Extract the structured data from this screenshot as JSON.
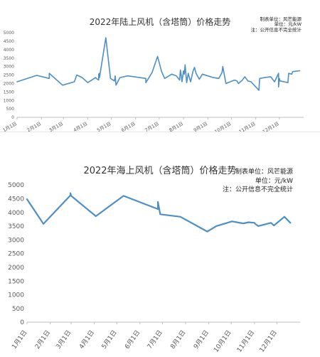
{
  "chart_data": [
    {
      "type": "line",
      "title": "2022年陆上风机（含塔筒）价格走势",
      "notes": [
        "制表单位：风芒能源",
        "单位：元/kW",
        "注：公开信息不完全统计"
      ],
      "categories": [
        "1月1日",
        "2月1日",
        "3月1日",
        "4月1日",
        "5月1日",
        "6月1日",
        "7月1日",
        "8月1日",
        "9月1日",
        "10月1日",
        "11月1日",
        "12月1日"
      ],
      "ylim": [
        0,
        5000
      ],
      "yticks": [
        0,
        500,
        1000,
        1500,
        2000,
        2500,
        3000,
        3500,
        4000,
        4500,
        5000
      ],
      "grid": false,
      "series_color": "#4e8fc6",
      "x": [
        "2022-01-01",
        "2022-01-26",
        "2022-02-11",
        "2022-02-11",
        "2022-02-28",
        "2022-03-15",
        "2022-03-18",
        "2022-03-25",
        "2022-04-01",
        "2022-04-11",
        "2022-04-12",
        "2022-04-15",
        "2022-04-15",
        "2022-04-16",
        "2022-04-16",
        "2022-04-24",
        "2022-04-30",
        "2022-05-05",
        "2022-05-06",
        "2022-05-07",
        "2022-05-12",
        "2022-05-22",
        "2022-06-14",
        "2022-06-14",
        "2022-06-22",
        "2022-06-29",
        "2022-07-04",
        "2022-07-08",
        "2022-07-17",
        "2022-07-23",
        "2022-07-27",
        "2022-07-28",
        "2022-07-29",
        "2022-07-30",
        "2022-08-01",
        "2022-08-02",
        "2022-08-03",
        "2022-08-05",
        "2022-08-07",
        "2022-08-10",
        "2022-08-13",
        "2022-08-15",
        "2022-08-17",
        "2022-08-21",
        "2022-08-25",
        "2022-09-01",
        "2022-09-08",
        "2022-09-15",
        "2022-09-19",
        "2022-09-20",
        "2022-09-24",
        "2022-10-05",
        "2022-10-08",
        "2022-10-10",
        "2022-10-15",
        "2022-10-18",
        "2022-10-22",
        "2022-10-26",
        "2022-11-05",
        "2022-11-06",
        "2022-11-12",
        "2022-11-20",
        "2022-11-25",
        "2022-11-30",
        "2022-11-30",
        "2022-12-01",
        "2022-12-02",
        "2022-12-12",
        "2022-12-13",
        "2022-12-17",
        "2022-12-18",
        "2022-12-27"
      ],
      "values": [
        2100,
        2480,
        2300,
        2600,
        1900,
        2100,
        2500,
        2350,
        2050,
        2350,
        2300,
        2200,
        2550,
        2600,
        2350,
        4700,
        2300,
        2150,
        2450,
        1900,
        2350,
        2450,
        2300,
        2050,
        2650,
        3600,
        2700,
        2300,
        2550,
        2450,
        2200,
        2800,
        2500,
        2100,
        2750,
        2550,
        3100,
        2050,
        2600,
        2100,
        2700,
        2950,
        2600,
        2250,
        2550,
        2450,
        2350,
        2300,
        2650,
        3000,
        2000,
        2200,
        2150,
        2000,
        2200,
        2400,
        2150,
        2100,
        1600,
        2300,
        2350,
        2400,
        2100,
        2600,
        1800,
        2300,
        2150,
        2050,
        2600,
        2550,
        2700,
        2750
      ],
      "series_name": ""
    },
    {
      "type": "line",
      "title": "2022年海上风机（含塔筒）价格走势",
      "notes": [
        "制表单位：风芒能源",
        "单位：元/kW",
        "注：公开信息不完全统计"
      ],
      "categories": [
        "1月1日",
        "2月1日",
        "3月1日",
        "4月1日",
        "5月1日",
        "6月1日",
        "7月1日",
        "8月1日",
        "9月1日",
        "10月1日",
        "11月1日",
        "12月1日"
      ],
      "ylim": [
        0,
        5000
      ],
      "yticks": [
        0,
        500,
        1000,
        1500,
        2000,
        2500,
        3000,
        3500,
        4000,
        4500,
        5000
      ],
      "grid": false,
      "series_color": "#4e8fc6",
      "x": [
        "2022-01-01",
        "2022-01-23",
        "2022-02-28",
        "2022-02-28",
        "2022-03-01",
        "2022-04-03",
        "2022-05-10",
        "2022-06-25",
        "2022-06-25",
        "2022-06-28",
        "2022-07-25",
        "2022-08-30",
        "2022-09-11",
        "2022-10-02",
        "2022-10-16",
        "2022-10-18",
        "2022-10-24",
        "2022-11-01",
        "2022-11-02",
        "2022-11-06",
        "2022-11-23",
        "2022-11-27",
        "2022-12-11",
        "2022-12-19"
      ],
      "values": [
        4480,
        3580,
        4620,
        4700,
        4600,
        3860,
        4600,
        4120,
        4380,
        3930,
        3840,
        3300,
        3500,
        3670,
        3600,
        3600,
        3640,
        3620,
        3580,
        3500,
        3620,
        3520,
        3840,
        3620
      ],
      "series_name": ""
    }
  ]
}
